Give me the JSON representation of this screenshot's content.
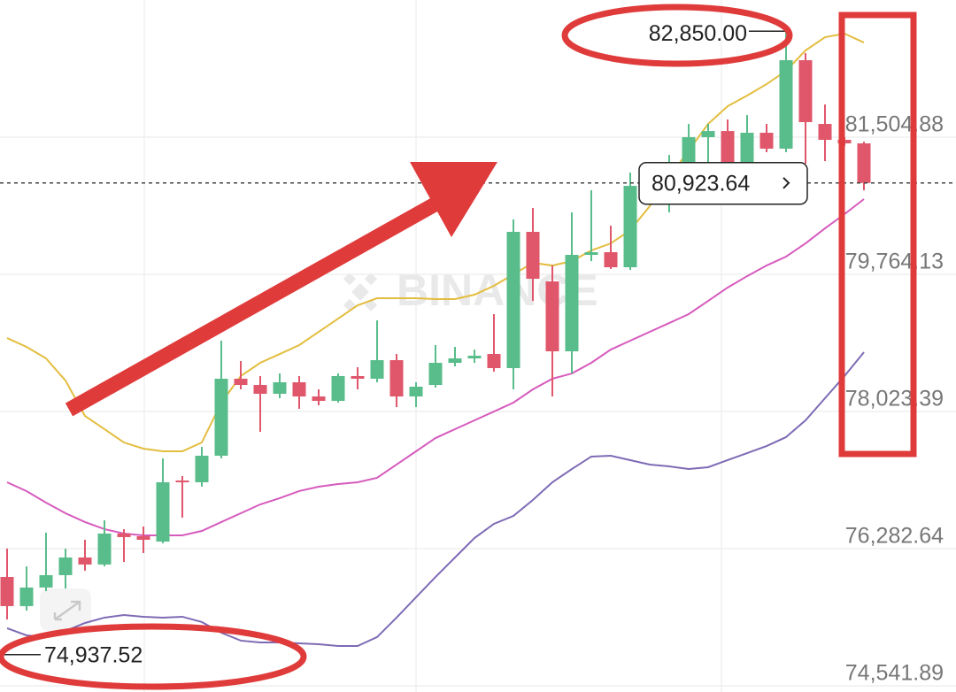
{
  "chart_data": {
    "type": "candlestick",
    "watermark": "BINANCE",
    "open": [
      75923,
      75553,
      75789,
      75946,
      76170,
      76081,
      76474,
      76440,
      76372,
      77147,
      77125,
      77462,
      78439,
      78360,
      78248,
      78394,
      78214,
      78158,
      78473,
      78439,
      78675,
      78214,
      78360,
      78641,
      78697,
      78753,
      78574,
      80303,
      79674,
      78787,
      80011,
      80045,
      79854,
      80864,
      80999,
      81112,
      81505,
      81583,
      80999,
      81561,
      81359,
      82482,
      81673,
      81471,
      81426
    ],
    "high": [
      76283,
      76058,
      76485,
      76283,
      76395,
      76642,
      76530,
      76563,
      77428,
      77204,
      77574,
      78922,
      78663,
      78473,
      78506,
      78473,
      78304,
      78506,
      78585,
      79180,
      78753,
      78394,
      78866,
      78843,
      78809,
      79259,
      80460,
      80606,
      79876,
      80550,
      80831,
      80382,
      81055,
      81055,
      81280,
      81673,
      81673,
      81729,
      81785,
      81673,
      82850,
      82571,
      81920,
      81505,
      81448
    ],
    "low": [
      75384,
      75497,
      75744,
      75777,
      76002,
      76058,
      76114,
      76227,
      76350,
      76676,
      77069,
      77428,
      78304,
      77765,
      78192,
      78057,
      78102,
      78136,
      78304,
      78394,
      78079,
      78079,
      78327,
      78596,
      78641,
      78529,
      78304,
      79427,
      78214,
      78506,
      79932,
      79831,
      79820,
      80831,
      80550,
      80887,
      81055,
      80943,
      80943,
      81314,
      81314,
      81168,
      81201,
      81392,
      80831
    ],
    "close": [
      75553,
      75789,
      75946,
      76170,
      76081,
      76474,
      76429,
      76395,
      77125,
      77125,
      77462,
      78439,
      78360,
      78248,
      78394,
      78214,
      78158,
      78473,
      78439,
      78675,
      78214,
      78338,
      78641,
      78697,
      78731,
      78574,
      80303,
      79708,
      78787,
      80011,
      80045,
      79854,
      80887,
      80999,
      81112,
      81505,
      81583,
      80999,
      81561,
      81359,
      82482,
      81696,
      81471,
      81426,
      80923.64
    ],
    "up_color": "#58bd8a",
    "down_color": "#e0566b",
    "series": [
      {
        "color": "#e3bd3f",
        "values": [
          78955,
          78843,
          78697,
          78416,
          77967,
          77799,
          77630,
          77552,
          77518,
          77518,
          77630,
          78136,
          78473,
          78641,
          78753,
          78866,
          79034,
          79202,
          79371,
          79461,
          79461,
          79461,
          79450,
          79450,
          79506,
          79618,
          79764,
          79910,
          79876,
          79932,
          80067,
          80157,
          80325,
          80629,
          80999,
          81336,
          81673,
          81898,
          82033,
          82178,
          82347,
          82605,
          82774,
          82819,
          82706
        ]
      },
      {
        "color": "#d65bbd",
        "values": [
          77125,
          77013,
          76867,
          76732,
          76620,
          76530,
          76474,
          76451,
          76451,
          76451,
          76507,
          76620,
          76732,
          76844,
          76923,
          77013,
          77069,
          77102,
          77125,
          77181,
          77350,
          77518,
          77686,
          77799,
          77911,
          78023,
          78136,
          78304,
          78439,
          78506,
          78641,
          78809,
          78922,
          79034,
          79146,
          79259,
          79427,
          79596,
          79741,
          79876,
          79989,
          80157,
          80348,
          80528,
          80719
        ]
      },
      {
        "color": "#7e6bb5",
        "values": [
          75272,
          75182,
          75160,
          75238,
          75339,
          75407,
          75440,
          75418,
          75407,
          75418,
          75351,
          75216,
          75115,
          75092,
          75092,
          75081,
          75070,
          75047,
          75047,
          75160,
          75407,
          75665,
          75923,
          76170,
          76417,
          76597,
          76698,
          76900,
          77125,
          77293,
          77451,
          77462,
          77406,
          77350,
          77327,
          77293,
          77316,
          77406,
          77495,
          77585,
          77698,
          77911,
          78192,
          78473,
          78776
        ]
      }
    ],
    "ylim": [
      74463,
      83246
    ],
    "yticks": [
      {
        "value": 81504.88,
        "label": "81,504.88"
      },
      {
        "value": 79764.13,
        "label": "79,764.13"
      },
      {
        "value": 78023.39,
        "label": "78,023.39"
      },
      {
        "value": 76282.64,
        "label": "76,282.64"
      },
      {
        "value": 74541.89,
        "label": "74,541.89"
      }
    ],
    "grid": true,
    "annotations": [
      {
        "value": 82850,
        "label": "82,850.00"
      },
      {
        "value": 74937.52,
        "label": "74,937.52"
      }
    ],
    "last_price": {
      "value": 80923.64,
      "label": "80,923.64"
    }
  }
}
